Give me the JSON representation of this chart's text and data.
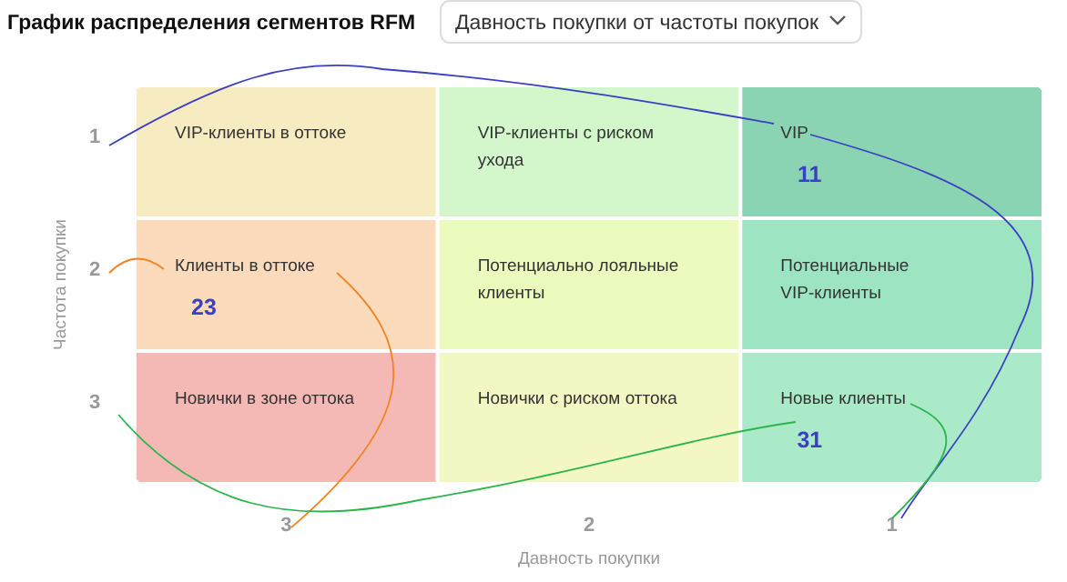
{
  "chart_data": {
    "type": "heatmap",
    "title": "График распределения сегментов RFM",
    "subtitle": "Давность покупки от частоты покупок",
    "xlabel": "Давность покупки",
    "ylabel": "Частота покупки",
    "categories": [
      "3",
      "2",
      "1"
    ],
    "y_categories": [
      "1",
      "2",
      "3"
    ],
    "cells": [
      [
        null,
        null,
        11
      ],
      [
        23,
        null,
        null
      ],
      [
        null,
        null,
        31
      ]
    ],
    "data_labels": true,
    "annotations": [
      "VIP-клиенты в оттоке",
      "VIP-клиенты с риском ухода",
      "VIP",
      "Клиенты в оттоке",
      "Потенциально лояльные клиенты",
      "Потенциальные VIP-клиенты",
      "Новички в зоне оттока",
      "Новички с риском оттока",
      "Новые клиенты"
    ],
    "colors": [
      [
        "#f7ebc1",
        "#d3f7cb",
        "#8ad4b3"
      ],
      [
        "#fcdbbd",
        "#ebfbbd",
        "#9de4c3"
      ],
      [
        "#f4b9b4",
        "#f3f7c3",
        "#abeac9"
      ]
    ]
  }
}
